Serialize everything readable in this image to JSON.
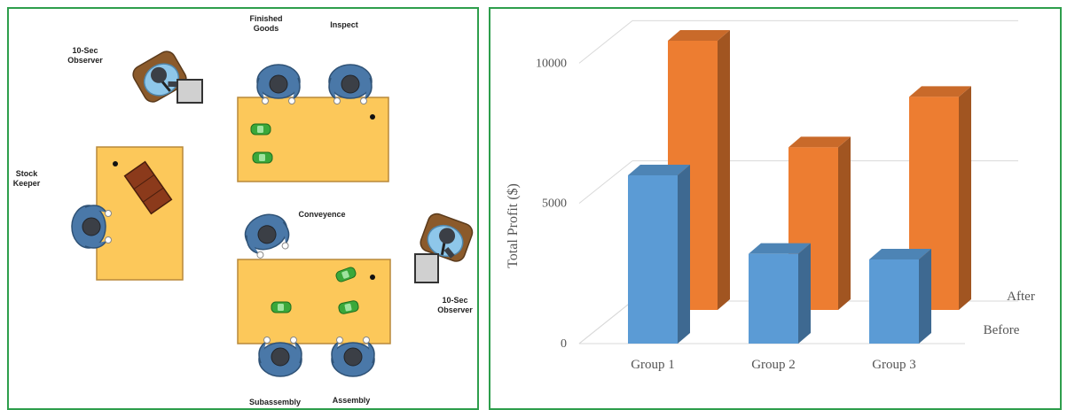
{
  "diagram": {
    "labels": {
      "finished_goods": [
        "Finished",
        "Goods"
      ],
      "inspect": "Inspect",
      "observer_top": [
        "10-Sec",
        "Observer"
      ],
      "stock_keeper": [
        "Stock",
        "Keeper"
      ],
      "conveyence": "Conveyence",
      "observer_right": [
        "10-Sec",
        "Observer"
      ],
      "subassembly": "Subassembly",
      "assembly": "Assembly"
    },
    "colors": {
      "table": "#fcc85a",
      "table_border": "#b8893a",
      "worker_shirt": "#4a78a8",
      "observer_shirt": "#8ec7ea",
      "car": "#3aa83a",
      "frame": "#2e9e4c"
    },
    "icons": [
      "worker-icon",
      "observer-icon",
      "tablet-icon",
      "toy-car-icon",
      "parts-box-icon",
      "chair-icon"
    ]
  },
  "chart_data": {
    "type": "bar",
    "categories": [
      "Group 1",
      "Group 2",
      "Group 3"
    ],
    "series": [
      {
        "name": "Before",
        "values": [
          6000,
          3200,
          3000
        ],
        "color": "#5b9bd5"
      },
      {
        "name": "After",
        "values": [
          9600,
          5800,
          7600
        ],
        "color": "#ed7d31"
      }
    ],
    "ylabel": "Total Profit ($)",
    "yticks": [
      0,
      5000,
      10000
    ],
    "ylim": [
      0,
      12000
    ],
    "grid": true,
    "depth_labels": [
      "After",
      "Before"
    ]
  }
}
